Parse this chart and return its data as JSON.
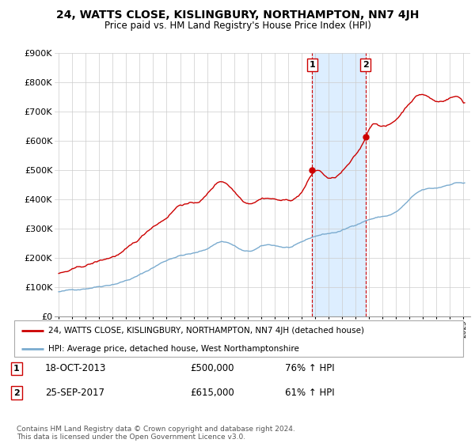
{
  "title": "24, WATTS CLOSE, KISLINGBURY, NORTHAMPTON, NN7 4JH",
  "subtitle": "Price paid vs. HM Land Registry's House Price Index (HPI)",
  "ylim": [
    0,
    900000
  ],
  "yticks": [
    0,
    100000,
    200000,
    300000,
    400000,
    500000,
    600000,
    700000,
    800000,
    900000
  ],
  "ytick_labels": [
    "£0",
    "£100K",
    "£200K",
    "£300K",
    "£400K",
    "£500K",
    "£600K",
    "£700K",
    "£800K",
    "£900K"
  ],
  "sale1_x": 2013.79,
  "sale1_y": 500000,
  "sale1_label": "1",
  "sale2_x": 2017.73,
  "sale2_y": 615000,
  "sale2_label": "2",
  "sale1_date": "18-OCT-2013",
  "sale1_price": "£500,000",
  "sale1_hpi": "76% ↑ HPI",
  "sale2_date": "25-SEP-2017",
  "sale2_price": "£615,000",
  "sale2_hpi": "61% ↑ HPI",
  "red_line_color": "#cc0000",
  "blue_line_color": "#7aabcf",
  "shaded_color": "#ddeeff",
  "dashed_color": "#cc0000",
  "footnote": "Contains HM Land Registry data © Crown copyright and database right 2024.\nThis data is licensed under the Open Government Licence v3.0.",
  "legend_line1": "24, WATTS CLOSE, KISLINGBURY, NORTHAMPTON, NN7 4JH (detached house)",
  "legend_line2": "HPI: Average price, detached house, West Northamptonshire",
  "xlim_left": 1995.0,
  "xlim_right": 2025.5
}
